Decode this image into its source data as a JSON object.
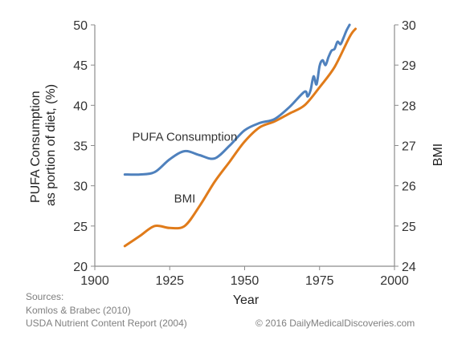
{
  "chart_data": {
    "type": "line",
    "xlabel": "Year",
    "y_left_label": [
      "PUFA Consumption",
      "as portion of diet, (%)"
    ],
    "y_right_label": "BMI",
    "xlim": [
      1900,
      2000
    ],
    "y_left_lim": [
      20,
      50
    ],
    "y_right_lim": [
      24,
      30
    ],
    "x_ticks": [
      "1900",
      "1925",
      "1950",
      "1975",
      "2000"
    ],
    "y_left_ticks": [
      "20",
      "25",
      "30",
      "35",
      "40",
      "45",
      "50"
    ],
    "y_right_ticks": [
      "24",
      "25",
      "26",
      "27",
      "28",
      "29",
      "30"
    ],
    "series": [
      {
        "name": "PUFA Consumption",
        "axis": "left",
        "color": "#4f81bd",
        "x": [
          1910,
          1915,
          1920,
          1925,
          1930,
          1935,
          1940,
          1945,
          1950,
          1955,
          1960,
          1965,
          1970,
          1971,
          1972,
          1973,
          1974,
          1975,
          1976,
          1977,
          1978,
          1979,
          1980,
          1981,
          1982,
          1983,
          1984,
          1985
        ],
        "y": [
          31.4,
          31.4,
          31.7,
          33.3,
          34.3,
          33.8,
          33.4,
          35.0,
          36.9,
          37.8,
          38.3,
          39.8,
          41.7,
          41.1,
          41.9,
          43.6,
          42.6,
          44.9,
          45.6,
          45.0,
          46.0,
          46.8,
          47.0,
          47.9,
          47.6,
          48.4,
          49.3,
          50.0
        ]
      },
      {
        "name": "BMI",
        "axis": "right",
        "color": "#e07b1a",
        "x": [
          1910,
          1915,
          1920,
          1925,
          1930,
          1935,
          1940,
          1945,
          1950,
          1955,
          1960,
          1965,
          1970,
          1975,
          1980,
          1985,
          1987
        ],
        "y": [
          24.5,
          24.75,
          25.0,
          24.95,
          25.0,
          25.5,
          26.1,
          26.6,
          27.1,
          27.45,
          27.6,
          27.8,
          28.0,
          28.45,
          28.95,
          29.7,
          29.9
        ]
      }
    ],
    "annotations": [
      {
        "text": "PUFA Consumption",
        "x": 1930,
        "y_left": 35.6
      },
      {
        "text": "BMI",
        "x": 1930,
        "y_left": 27.9
      }
    ],
    "grid": false,
    "legend": "none"
  },
  "sources": {
    "heading": "Sources:",
    "lines": [
      "Komlos & Brabec (2010)",
      "USDA Nutrient Content Report (2004)"
    ]
  },
  "copyright": "© 2016 DailyMedicalDiscoveries.com"
}
